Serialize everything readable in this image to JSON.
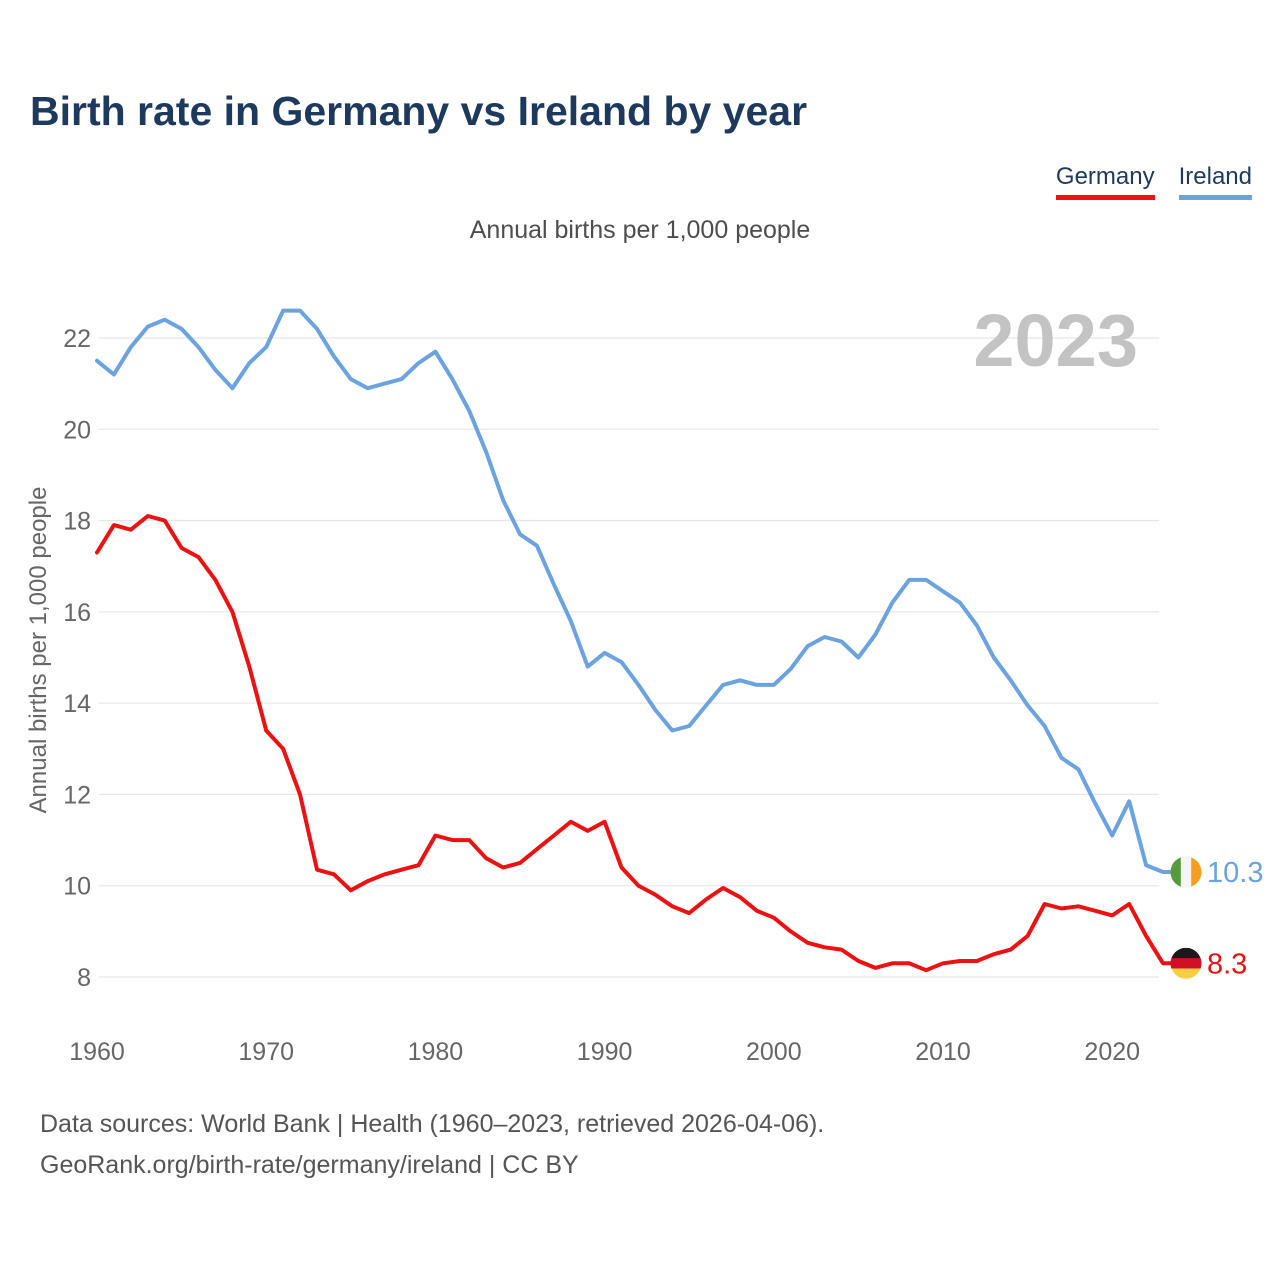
{
  "page": {
    "title": "Birth rate in Germany vs Ireland by year",
    "subtitle": "Annual births per 1,000 people",
    "footer_line1": "Data sources: World Bank | Health (1960–2023, retrieved 2026-04-06).",
    "footer_line2": "GeoRank.org/birth-rate/germany/ireland | CC BY"
  },
  "legend": {
    "items": [
      {
        "label": "Germany",
        "color": "#ee1111"
      },
      {
        "label": "Ireland",
        "color": "#6aa3e0"
      }
    ]
  },
  "colors": {
    "title": "#1d3a5e",
    "germany_line": "#ee1111",
    "ireland_line": "#6aa3e0",
    "grid": "#e8e8e8",
    "tick_text": "#666666",
    "watermark": "#c3c3c3",
    "footer_text": "#555555"
  },
  "chart_data": {
    "type": "line",
    "title": "Birth rate in Germany vs Ireland by year",
    "subtitle": "Annual births per 1,000 people",
    "ylabel": "Annual births per 1,000 people",
    "xlabel": "",
    "watermark": "2023",
    "grid": "horizontal",
    "legend_position": "top-right",
    "xlim": [
      1960,
      2023
    ],
    "ylim": [
      8,
      22
    ],
    "x_ticks": [
      1960,
      1970,
      1980,
      1990,
      2000,
      2010,
      2020
    ],
    "y_ticks": [
      8,
      10,
      12,
      14,
      16,
      18,
      20,
      22
    ],
    "x": [
      1960,
      1961,
      1962,
      1963,
      1964,
      1965,
      1966,
      1967,
      1968,
      1969,
      1970,
      1971,
      1972,
      1973,
      1974,
      1975,
      1976,
      1977,
      1978,
      1979,
      1980,
      1981,
      1982,
      1983,
      1984,
      1985,
      1986,
      1987,
      1988,
      1989,
      1990,
      1991,
      1992,
      1993,
      1994,
      1995,
      1996,
      1997,
      1998,
      1999,
      2000,
      2001,
      2002,
      2003,
      2004,
      2005,
      2006,
      2007,
      2008,
      2009,
      2010,
      2011,
      2012,
      2013,
      2014,
      2015,
      2016,
      2017,
      2018,
      2019,
      2020,
      2021,
      2022,
      2023
    ],
    "series": [
      {
        "name": "Germany",
        "color": "#ee1111",
        "values": [
          17.3,
          17.9,
          17.8,
          18.1,
          18.0,
          17.4,
          17.2,
          16.7,
          16.0,
          14.8,
          13.4,
          13.0,
          12.0,
          10.35,
          10.25,
          9.9,
          10.1,
          10.25,
          10.35,
          10.45,
          11.1,
          11.0,
          11.0,
          10.6,
          10.4,
          10.5,
          10.8,
          11.1,
          11.4,
          11.2,
          11.4,
          10.4,
          10.0,
          9.8,
          9.55,
          9.4,
          9.7,
          9.95,
          9.75,
          9.45,
          9.3,
          9.0,
          8.75,
          8.65,
          8.6,
          8.35,
          8.2,
          8.3,
          8.3,
          8.15,
          8.3,
          8.35,
          8.35,
          8.5,
          8.6,
          8.9,
          9.6,
          9.5,
          9.55,
          9.45,
          9.35,
          9.6,
          8.9,
          8.3
        ]
      },
      {
        "name": "Ireland",
        "color": "#6aa3e0",
        "values": [
          21.5,
          21.2,
          21.8,
          22.25,
          22.4,
          22.2,
          21.8,
          21.3,
          20.9,
          21.45,
          21.8,
          22.6,
          22.6,
          22.2,
          21.6,
          21.1,
          20.9,
          21.0,
          21.1,
          21.45,
          21.7,
          21.1,
          20.4,
          19.5,
          18.45,
          17.7,
          17.45,
          16.6,
          15.8,
          14.8,
          15.1,
          14.9,
          14.4,
          13.85,
          13.4,
          13.5,
          13.95,
          14.4,
          14.5,
          14.4,
          14.4,
          14.75,
          15.25,
          15.45,
          15.35,
          15.0,
          15.5,
          16.2,
          16.7,
          16.7,
          16.45,
          16.2,
          15.7,
          15.0,
          14.5,
          13.95,
          13.5,
          12.8,
          12.55,
          11.8,
          11.1,
          11.85,
          10.45,
          10.3
        ]
      }
    ],
    "end_labels": [
      {
        "series": "Ireland",
        "text": "10.3",
        "value": 10.3,
        "color": "#6aa3e0",
        "flag": "ireland-flag-icon"
      },
      {
        "series": "Germany",
        "text": "8.3",
        "value": 8.3,
        "color": "#ee1111",
        "flag": "germany-flag-icon"
      }
    ]
  },
  "flags": {
    "ireland": {
      "orientation": "vertical",
      "stripes": [
        "#569b3b",
        "#f5f5f5",
        "#f59d20"
      ]
    },
    "germany": {
      "orientation": "horizontal",
      "stripes": [
        "#1a1a1a",
        "#ce1126",
        "#f6cf46"
      ]
    }
  }
}
